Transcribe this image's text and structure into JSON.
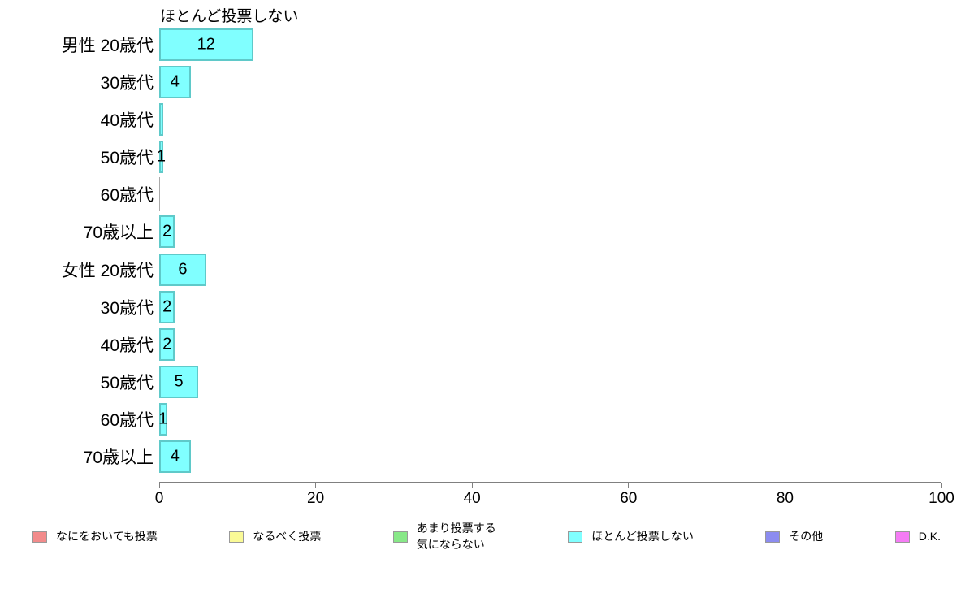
{
  "chart_data": {
    "type": "bar",
    "orientation": "horizontal",
    "title": "ほとんど投票しない",
    "categories": [
      "男性 20歳代",
      "30歳代",
      "40歳代",
      "50歳代",
      "60歳代",
      "70歳以上",
      "女性 20歳代",
      "30歳代",
      "40歳代",
      "50歳代",
      "60歳代",
      "70歳以上"
    ],
    "values": [
      12,
      4,
      0.5,
      0.5,
      0,
      2,
      6,
      2,
      2,
      5,
      1,
      4
    ],
    "value_labels": [
      "12",
      "4",
      "",
      "1",
      "",
      "2",
      "6",
      "2",
      "2",
      "5",
      "1",
      "4"
    ],
    "xlabel": "",
    "ylabel": "",
    "xlim": [
      0,
      100
    ],
    "x_ticks": [
      "0",
      "20",
      "40",
      "60",
      "80",
      "100"
    ],
    "x_tick_values": [
      0,
      20,
      40,
      60,
      80,
      100
    ],
    "grid": false,
    "legend_position": "bottom",
    "bar_color": "#80FFFF",
    "bar_border_color": "#5FC9C9",
    "axis_color": "#808080",
    "legend": [
      {
        "label": "なにをおいても投票",
        "color": "#F28B8B"
      },
      {
        "label": "なるべく投票",
        "color": "#FAFA96"
      },
      {
        "label": "あまり投票する\n気にならない",
        "color": "#88E888"
      },
      {
        "label": "ほとんど投票しない",
        "color": "#80FFFF"
      },
      {
        "label": "その他",
        "color": "#8C8CF0"
      },
      {
        "label": "D.K.",
        "color": "#F57CF5"
      }
    ]
  }
}
